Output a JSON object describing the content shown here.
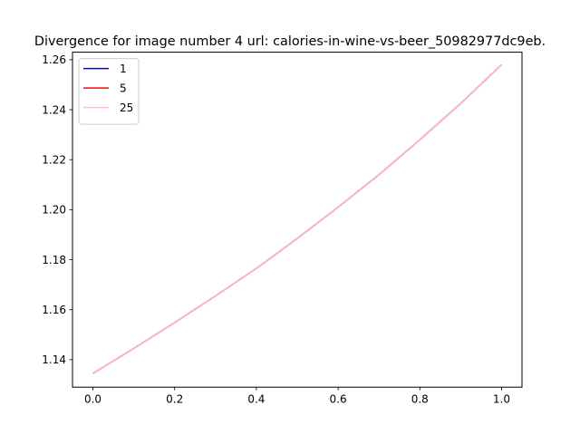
{
  "chart_data": {
    "type": "line",
    "title": "Divergence for image number 4 url: calories-in-wine-vs-beer_50982977dc9eb.",
    "xlabel": "",
    "ylabel": "",
    "xlim": [
      -0.05,
      1.05
    ],
    "ylim": [
      1.129,
      1.263
    ],
    "xticks": [
      0.0,
      0.2,
      0.4,
      0.6,
      0.8,
      1.0
    ],
    "xtick_labels": [
      "0.0",
      "0.2",
      "0.4",
      "0.6",
      "0.8",
      "1.0"
    ],
    "yticks": [
      1.14,
      1.16,
      1.18,
      1.2,
      1.22,
      1.24,
      1.26
    ],
    "ytick_labels": [
      "1.14",
      "1.16",
      "1.18",
      "1.20",
      "1.22",
      "1.24",
      "1.26"
    ],
    "grid": false,
    "legend_placement": "upper-left",
    "series": [
      {
        "name": "1",
        "color": "#0000ff",
        "x": [
          0.0,
          0.1,
          0.2,
          0.3,
          0.4,
          0.5,
          0.6,
          0.7,
          0.8,
          0.9,
          1.0
        ],
        "y": [
          1.1345,
          1.1445,
          1.1548,
          1.1655,
          1.1765,
          1.1885,
          1.201,
          1.214,
          1.228,
          1.2425,
          1.258
        ]
      },
      {
        "name": "5",
        "color": "#ff0000",
        "x": [
          0.0,
          0.1,
          0.2,
          0.3,
          0.4,
          0.5,
          0.6,
          0.7,
          0.8,
          0.9,
          1.0
        ],
        "y": [
          1.1345,
          1.1445,
          1.1548,
          1.1655,
          1.1765,
          1.1885,
          1.201,
          1.214,
          1.228,
          1.2425,
          1.258
        ]
      },
      {
        "name": "25",
        "color": "#ffc0cb",
        "x": [
          0.0,
          0.1,
          0.2,
          0.3,
          0.4,
          0.5,
          0.6,
          0.7,
          0.8,
          0.9,
          1.0
        ],
        "y": [
          1.1345,
          1.1445,
          1.1548,
          1.1655,
          1.1765,
          1.1885,
          1.201,
          1.214,
          1.228,
          1.2425,
          1.258
        ]
      }
    ]
  }
}
